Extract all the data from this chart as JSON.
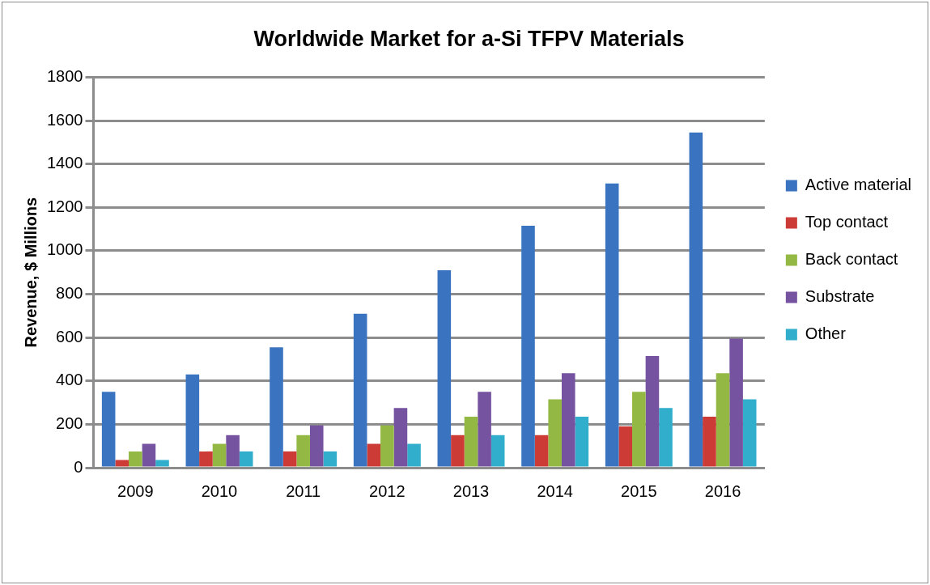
{
  "chart_data": {
    "type": "bar",
    "title": "Worldwide Market for a-Si TFPV Materials",
    "ylabel": "Revenue, $ Millions",
    "categories": [
      "2009",
      "2010",
      "2011",
      "2012",
      "2013",
      "2014",
      "2015",
      "2016"
    ],
    "series": [
      {
        "name": "Active material",
        "color": "#3a73c0",
        "values": [
          350,
          430,
          555,
          710,
          910,
          1115,
          1310,
          1545
        ]
      },
      {
        "name": "Top contact",
        "color": "#cc3b36",
        "values": [
          35,
          75,
          75,
          110,
          150,
          150,
          190,
          235
        ]
      },
      {
        "name": "Back contact",
        "color": "#93b843",
        "values": [
          75,
          110,
          150,
          195,
          235,
          315,
          350,
          435
        ]
      },
      {
        "name": "Substrate",
        "color": "#7653a0",
        "values": [
          110,
          150,
          195,
          275,
          350,
          435,
          515,
          595
        ]
      },
      {
        "name": "Other",
        "color": "#31aecb",
        "values": [
          35,
          75,
          75,
          110,
          150,
          235,
          275,
          315
        ]
      }
    ],
    "ylim": [
      0,
      1800
    ],
    "yticks": [
      0,
      200,
      400,
      600,
      800,
      1000,
      1200,
      1400,
      1600,
      1800
    ],
    "grid": "y",
    "legend": "right"
  }
}
